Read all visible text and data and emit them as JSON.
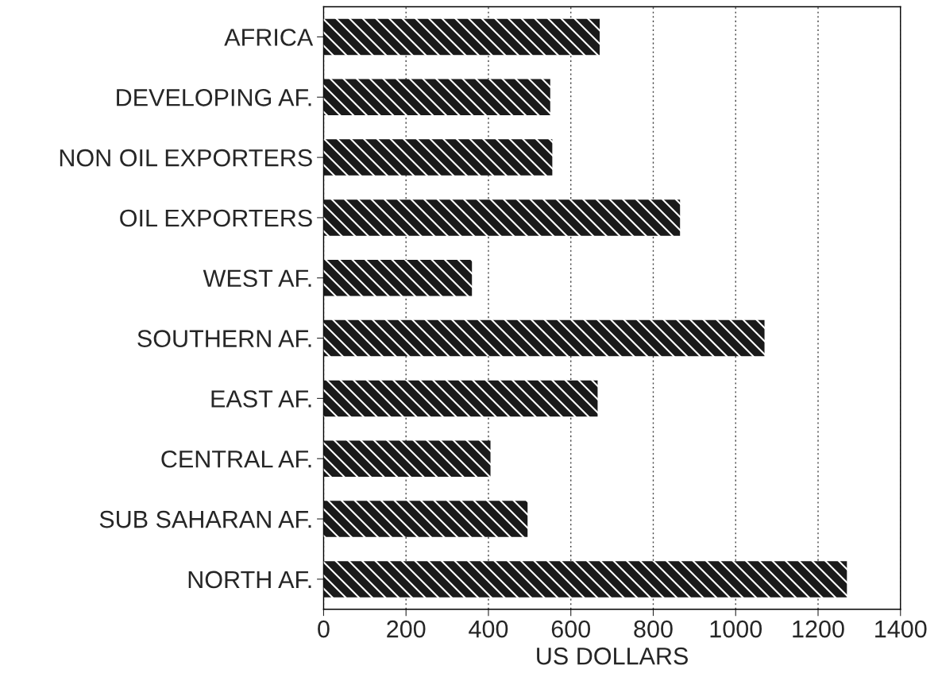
{
  "chart_data": {
    "type": "bar",
    "orientation": "horizontal",
    "xlabel": "US DOLLARS",
    "categories": [
      "AFRICA",
      "DEVELOPING AF.",
      "NON OIL EXPORTERS",
      "OIL EXPORTERS",
      "WEST AF.",
      "SOUTHERN AF.",
      "EAST AF.",
      "CENTRAL AF.",
      "SUB SAHARAN AF.",
      "NORTH AF."
    ],
    "values": [
      670,
      550,
      555,
      865,
      360,
      1070,
      665,
      405,
      495,
      1270
    ],
    "color": "#1a1a1a",
    "xlim": [
      0,
      1400
    ],
    "xticks": [
      0,
      200,
      400,
      600,
      800,
      1000,
      1200,
      1400
    ],
    "grid": "x"
  }
}
